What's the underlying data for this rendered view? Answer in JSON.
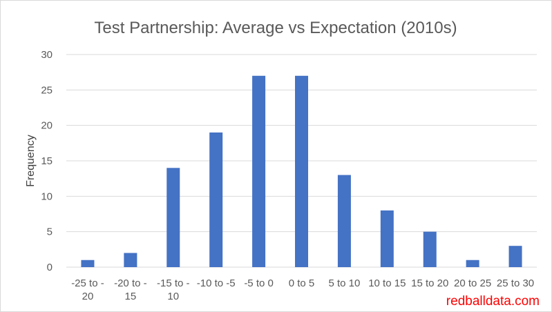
{
  "chart_data": {
    "type": "bar",
    "title": "Test Partnership: Average vs Expectation (2010s)",
    "xlabel": "",
    "ylabel": "Frequency",
    "ylim": [
      0,
      30
    ],
    "yticks": [
      "0",
      "5",
      "10",
      "15",
      "20",
      "25",
      "30"
    ],
    "categories": [
      [
        "-25 to -",
        "20"
      ],
      [
        "-20 to -",
        "15"
      ],
      [
        "-15 to -",
        "10"
      ],
      [
        "-10 to -5"
      ],
      [
        "-5 to 0"
      ],
      [
        "0 to 5"
      ],
      [
        "5 to 10"
      ],
      [
        "10 to 15"
      ],
      [
        "15 to 20"
      ],
      [
        "20 to 25"
      ],
      [
        "25 to 30"
      ]
    ],
    "values": [
      1,
      2,
      14,
      19,
      27,
      27,
      13,
      8,
      5,
      1,
      3
    ],
    "grid": true,
    "legend": "none",
    "bar_color": "#4472c4"
  },
  "watermark": {
    "text": "redballdata.com",
    "color": "#ff0000"
  }
}
